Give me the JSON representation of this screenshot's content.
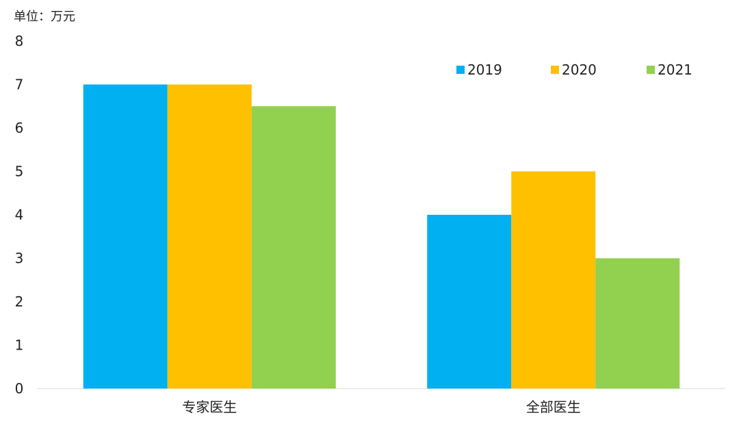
{
  "chart_data": {
    "type": "bar",
    "unit_label": "单位：万元",
    "categories": [
      "专家医生",
      "全部医生"
    ],
    "series": [
      {
        "name": "2019",
        "values": [
          7,
          4
        ],
        "color": "#00B0F0"
      },
      {
        "name": "2020",
        "values": [
          7,
          5
        ],
        "color": "#FFC000"
      },
      {
        "name": "2021",
        "values": [
          6.5,
          3
        ],
        "color": "#92D050"
      }
    ],
    "y_ticks": [
      "0",
      "1",
      "2",
      "3",
      "4",
      "5",
      "6",
      "7",
      "8"
    ],
    "ylim": [
      0,
      8
    ],
    "grid": false,
    "legend_position": "top-right"
  }
}
